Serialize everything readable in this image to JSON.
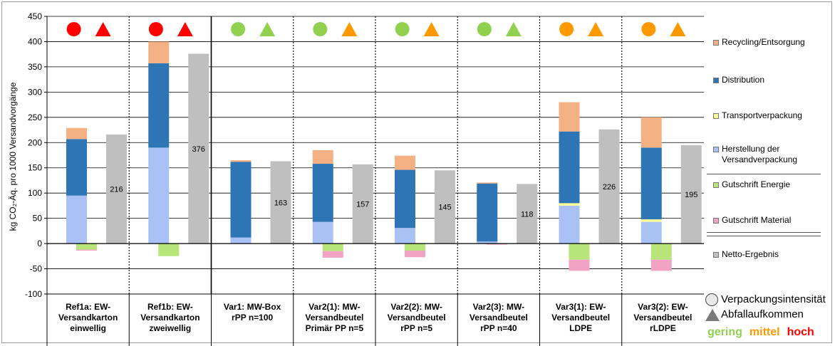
{
  "colors": {
    "recycling": "#F4B183",
    "distribution": "#2E75B6",
    "transport": "#FFFF99",
    "herstellung": "#A9C1F5",
    "gutschrift_energie": "#B7E57A",
    "gutschrift_material": "#F2A3C4",
    "netto": "#BFBFBF",
    "gering": "#92D050",
    "mittel": "#FF9900",
    "hoch": "#FF0000"
  },
  "chart_data": {
    "type": "bar",
    "stacked": true,
    "ylabel": "kg CO₂-Äq. pro 1000 Versandvorgänge",
    "ylim": [
      -100,
      450
    ],
    "yticks": [
      -100,
      -50,
      0,
      50,
      100,
      150,
      200,
      250,
      300,
      350,
      400,
      450
    ],
    "grid": true,
    "legend_position": "right",
    "categories": [
      "Ref1a: EW-\nVersandkarton\neinwellig",
      "Ref1b: EW-\nVersandkarton\nzweiwellig",
      "Var1: MW-Box\nrPP n=100",
      "Var2(1): MW-\nVersandbeutel\nPrimär PP n=5",
      "Var2(2): MW-\nVersandbeutel\nrPP n=5",
      "Var2(3): MW-\nVersandbeutel\nrPP n=40",
      "Var3(1): EW-\nVersandbeutel\nLDPE",
      "Var3(2): EW-\nVersandbeutel\nrLDPE"
    ],
    "series": [
      {
        "name": "Herstellung der Versandverpackung",
        "color_key": "herstellung",
        "values": [
          95,
          190,
          12,
          43,
          31,
          4,
          75,
          43
        ]
      },
      {
        "name": "Transportverpackung",
        "color_key": "transport",
        "values": [
          0,
          0,
          0,
          0,
          0,
          0,
          5,
          5
        ]
      },
      {
        "name": "Distribution",
        "color_key": "distribution",
        "values": [
          112,
          167,
          150,
          115,
          115,
          115,
          142,
          142
        ]
      },
      {
        "name": "Recycling/Entsorgung",
        "color_key": "recycling",
        "values": [
          22,
          43,
          3,
          27,
          28,
          2,
          58,
          60
        ]
      },
      {
        "name": "Gutschrift Energie",
        "color_key": "gutschrift_energie",
        "values": [
          -12,
          -25,
          0,
          -15,
          -14,
          -1,
          -32,
          -32
        ]
      },
      {
        "name": "Gutschrift Material",
        "color_key": "gutschrift_material",
        "values": [
          -2,
          0,
          0,
          -13,
          -13,
          -1,
          -22,
          -22
        ]
      }
    ],
    "netto": {
      "name": "Netto-Ergebnis",
      "values": [
        216,
        376,
        163,
        157,
        145,
        118,
        226,
        195
      ],
      "labels": [
        "216",
        "376",
        "163",
        "157",
        "145",
        "118",
        "226",
        "195"
      ]
    },
    "indicators": {
      "verpackungsintensitaet": [
        "hoch",
        "hoch",
        "gering",
        "gering",
        "gering",
        "gering",
        "mittel",
        "mittel"
      ],
      "abfallaufkommen": [
        "hoch",
        "hoch",
        "gering",
        "mittel",
        "mittel",
        "gering",
        "mittel",
        "mittel"
      ]
    }
  },
  "legend": [
    {
      "label": "Recycling/Entsorgung",
      "color_key": "recycling"
    },
    {
      "label": "Distribution",
      "color_key": "distribution"
    },
    {
      "label": "Transportverpackung",
      "color_key": "transport"
    },
    {
      "label": "Herstellung der\nVersandverpackung",
      "color_key": "herstellung"
    },
    {
      "label": "Gutschrift Energie",
      "color_key": "gutschrift_energie"
    },
    {
      "label": "Gutschrift Material",
      "color_key": "gutschrift_material"
    },
    {
      "label": "Netto-Ergebnis",
      "color_key": "netto"
    }
  ],
  "key": {
    "circle_label": "Verpackungsintensität",
    "triangle_label": "Abfallaufkommen",
    "gering": "gering",
    "mittel": "mittel",
    "hoch": "hoch"
  }
}
